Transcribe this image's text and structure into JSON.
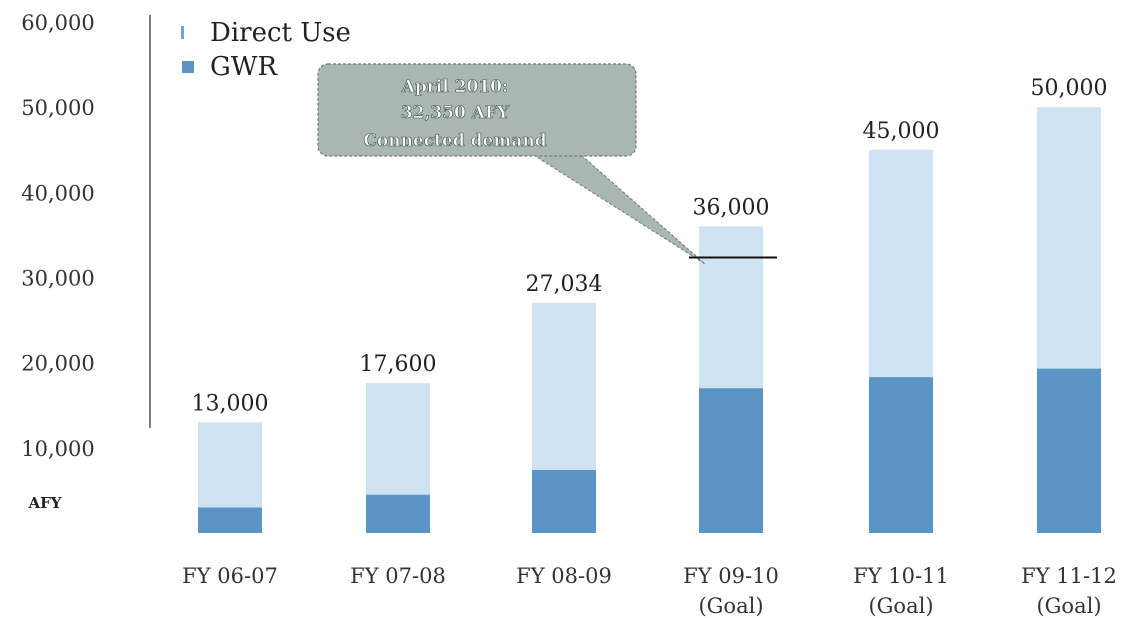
{
  "chart_data": {
    "type": "bar",
    "stacked": true,
    "ylabel": "AFY",
    "ylim": [
      0,
      60000
    ],
    "yticks": [
      "60,000",
      "50,000",
      "40,000",
      "30,000",
      "20,000",
      "10,000"
    ],
    "ytick_values": [
      60000,
      50000,
      40000,
      30000,
      20000,
      10000
    ],
    "categories": [
      [
        "FY 06-07"
      ],
      [
        "FY 07-08"
      ],
      [
        "FY 08-09"
      ],
      [
        "FY 09-10",
        "(Goal)"
      ],
      [
        "FY 10-11",
        "(Goal)"
      ],
      [
        "FY 11-12",
        "(Goal)"
      ]
    ],
    "series": [
      {
        "name": "GWR",
        "color": "#5b95c6",
        "values": [
          3000,
          4500,
          7400,
          17000,
          18300,
          19300
        ]
      },
      {
        "name": "Direct Use",
        "color": "#cfe2f2",
        "values": [
          10000,
          13100,
          19634,
          19000,
          26700,
          30700
        ]
      }
    ],
    "totals": [
      13000,
      17600,
      27034,
      36000,
      45000,
      50000
    ],
    "total_labels": [
      "13,000",
      "17,600",
      "27,034",
      "36,000",
      "45,000",
      "50,000"
    ],
    "legend": {
      "position": "top-left",
      "entries": [
        "Direct Use",
        "GWR"
      ]
    },
    "annotation": {
      "lines": [
        "April 2010:",
        "32,350 AFY",
        "Connected demand"
      ],
      "value": 32350,
      "category_index": 3
    },
    "grid": false
  }
}
